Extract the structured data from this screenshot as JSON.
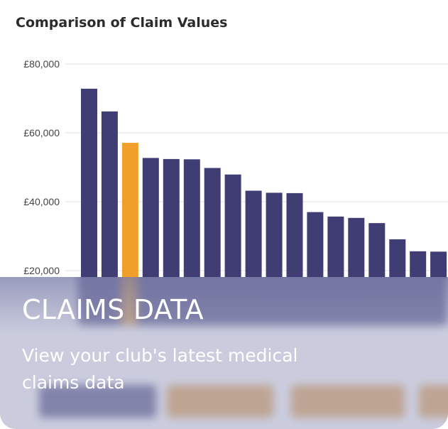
{
  "card": {
    "title": "CLAIMS DATA",
    "description": "View your club's latest medical claims data"
  },
  "colors": {
    "bar_default": "#3f3d74",
    "bar_highlight": "#f0a02a",
    "overlay_tint": "#aaacca",
    "grid": "#e2e2e2"
  },
  "chart_data": {
    "type": "bar",
    "title": "Comparison of Claim Values",
    "y_ticks": [
      "£20,000",
      "£40,000",
      "£60,000",
      "£80,000"
    ],
    "y_tick_values": [
      20000,
      40000,
      60000,
      80000
    ],
    "ylim": [
      0,
      80000
    ],
    "grid": true,
    "highlight_index": 2,
    "values": [
      72800,
      66200,
      57100,
      52700,
      52400,
      52300,
      49800,
      47900,
      43200,
      42600,
      42500,
      37000,
      35700,
      35300,
      33800,
      29100,
      25600,
      25500
    ]
  }
}
